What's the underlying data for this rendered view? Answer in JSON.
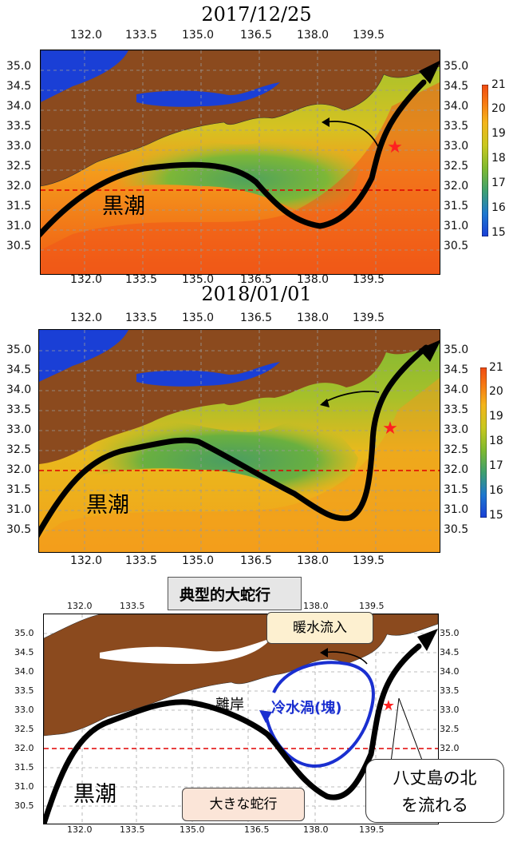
{
  "panels": {
    "top": {
      "date": "2017/12/25",
      "current_label": "黒潮"
    },
    "middle": {
      "date": "2018/01/01",
      "current_label": "黒潮"
    },
    "bottom": {
      "title": "典型的大蛇行",
      "current_label": "黒潮",
      "annotations": {
        "warm_inflow": "暖水流入",
        "cold_eddy": "冷水渦(塊)",
        "offshore": "離岸",
        "large_meander": "大きな蛇行",
        "hachijo": "八丈島の北\nを流れる"
      }
    }
  },
  "axes": {
    "lon_ticks": [
      "132.0",
      "133.5",
      "135.0",
      "136.5",
      "138.0",
      "139.5"
    ],
    "lat_ticks": [
      "35.0",
      "34.5",
      "34.0",
      "33.5",
      "33.0",
      "32.5",
      "32.0",
      "31.5",
      "31.0",
      "30.5"
    ],
    "lon_range": [
      131.6,
      141.0
    ],
    "lat_range": [
      30.2,
      35.6
    ],
    "reference_latitude": 32.0
  },
  "colorbar": {
    "min": 15,
    "max": 21,
    "ticks": [
      "21",
      "20",
      "19",
      "18",
      "17",
      "16",
      "15"
    ],
    "colors": [
      "#1a3fd6",
      "#1e78d0",
      "#3ea070",
      "#7fba2f",
      "#c9c81f",
      "#f4b51a",
      "#f77a12",
      "#f04a12"
    ]
  },
  "markers": {
    "star": {
      "lon": 139.8,
      "lat": 33.1,
      "color": "#ff2020"
    }
  },
  "colors": {
    "land": "#8b4a1e",
    "warm_sea": "#f26a1f",
    "cool_sea": "#7fba2f",
    "cold_water": "#1a3fd6",
    "eddy": "#1a2fd0",
    "kuroshio_path": "#000000",
    "reference_line": "#e00000"
  }
}
